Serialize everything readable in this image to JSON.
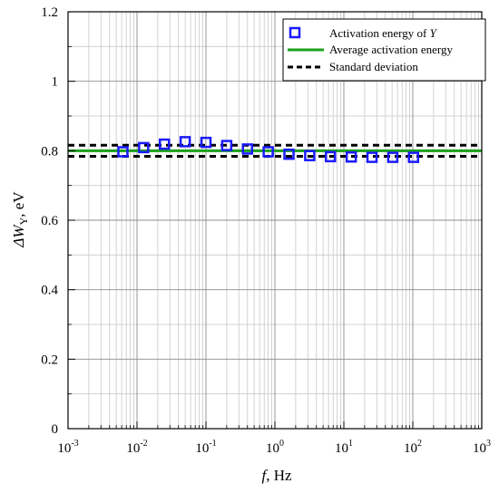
{
  "chart_data": {
    "type": "scatter",
    "xscale": "log",
    "xlim": [
      0.001,
      1000
    ],
    "ylim": [
      0,
      1.2
    ],
    "grid": true,
    "legend_position": "top-right",
    "xlabel": {
      "var": "f",
      "unit": ", Hz"
    },
    "ylabel": {
      "prefix": "ΔW",
      "sub": "Y",
      "unit": ", eV"
    },
    "x_ticks": [
      {
        "value": 0.001,
        "base": "10",
        "exp": "-3"
      },
      {
        "value": 0.01,
        "base": "10",
        "exp": "-2"
      },
      {
        "value": 0.1,
        "base": "10",
        "exp": "-1"
      },
      {
        "value": 1,
        "base": "10",
        "exp": "0"
      },
      {
        "value": 10,
        "base": "10",
        "exp": "1"
      },
      {
        "value": 100,
        "base": "10",
        "exp": "2"
      },
      {
        "value": 1000,
        "base": "10",
        "exp": "3"
      }
    ],
    "y_ticks": [
      {
        "value": 0,
        "label": "0"
      },
      {
        "value": 0.2,
        "label": "0.2"
      },
      {
        "value": 0.4,
        "label": "0.4"
      },
      {
        "value": 0.6,
        "label": "0.6"
      },
      {
        "value": 0.8,
        "label": "0.8"
      },
      {
        "value": 1.0,
        "label": "1"
      },
      {
        "value": 1.2,
        "label": "1.2"
      }
    ],
    "series": [
      {
        "kind": "points",
        "legend_text": "Activation energy of ",
        "legend_var": "Y",
        "color": "#1a1aff",
        "points": [
          {
            "x": 0.00625,
            "y": 0.797
          },
          {
            "x": 0.0125,
            "y": 0.809
          },
          {
            "x": 0.025,
            "y": 0.819
          },
          {
            "x": 0.05,
            "y": 0.826
          },
          {
            "x": 0.1,
            "y": 0.824
          },
          {
            "x": 0.2,
            "y": 0.815
          },
          {
            "x": 0.4,
            "y": 0.805
          },
          {
            "x": 0.8,
            "y": 0.797
          },
          {
            "x": 1.6,
            "y": 0.79
          },
          {
            "x": 3.2,
            "y": 0.786
          },
          {
            "x": 6.4,
            "y": 0.783
          },
          {
            "x": 12.8,
            "y": 0.782
          },
          {
            "x": 25.6,
            "y": 0.781
          },
          {
            "x": 51.2,
            "y": 0.781
          },
          {
            "x": 102.4,
            "y": 0.781
          }
        ]
      },
      {
        "kind": "hline",
        "legend_text": "Average activation energy",
        "color": "#1aa01a",
        "value": 0.8
      },
      {
        "kind": "band",
        "legend_text": "Standard deviation",
        "color": "#000000",
        "values": [
          0.784,
          0.816
        ]
      }
    ]
  }
}
